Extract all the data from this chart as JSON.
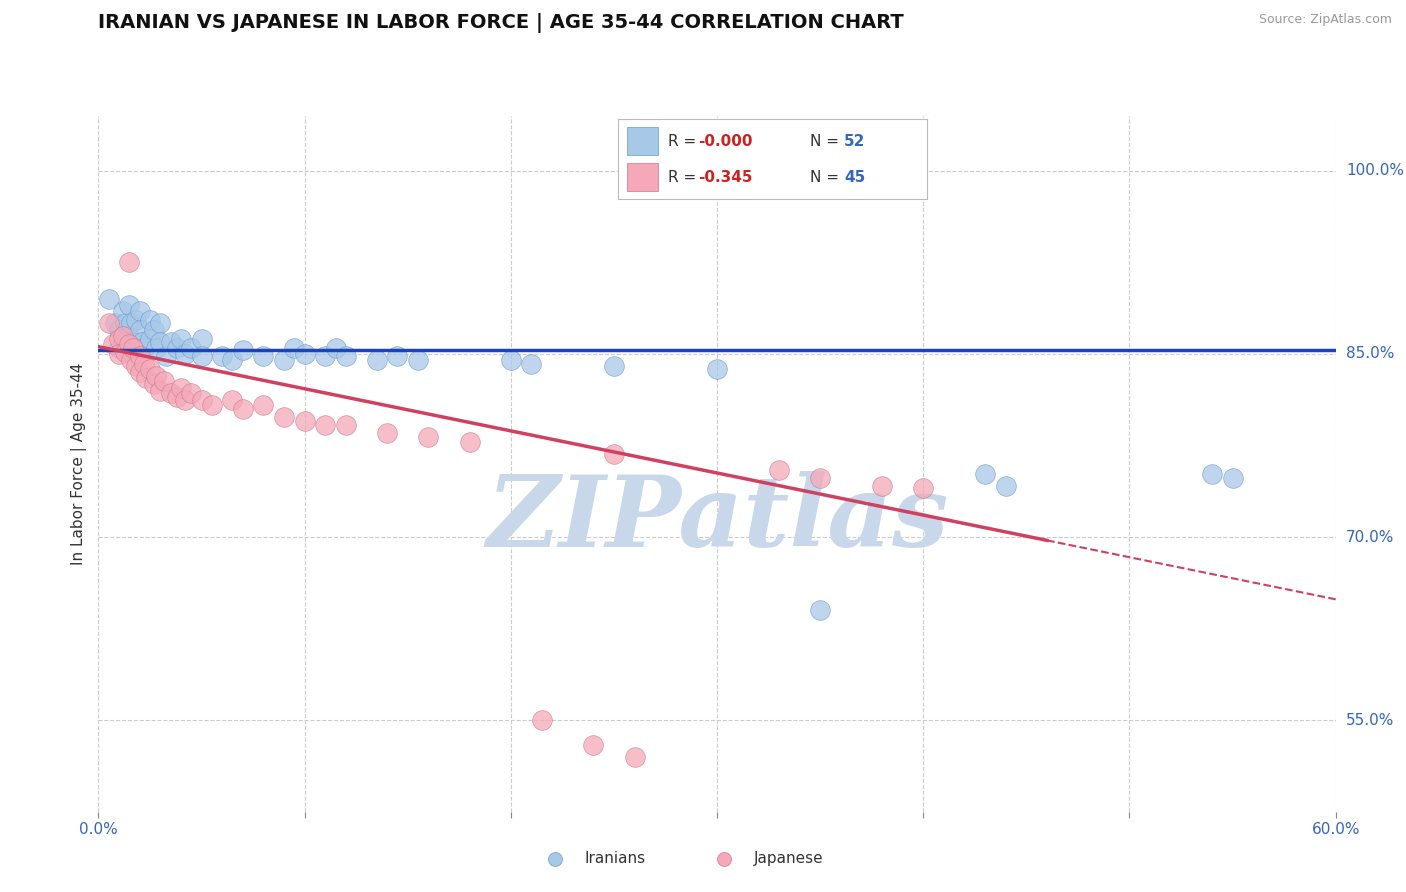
{
  "title": "IRANIAN VS JAPANESE IN LABOR FORCE | AGE 35-44 CORRELATION CHART",
  "source_text": "Source: ZipAtlas.com",
  "ylabel": "In Labor Force | Age 35-44",
  "xlim": [
    0.0,
    0.6
  ],
  "ylim": [
    0.475,
    1.045
  ],
  "xticks": [
    0.0,
    0.1,
    0.2,
    0.3,
    0.4,
    0.5,
    0.6
  ],
  "xticklabels": [
    "0.0%",
    "",
    "",
    "",
    "",
    "",
    "60.0%"
  ],
  "ytick_positions": [
    0.55,
    0.7,
    0.85,
    1.0
  ],
  "ytick_labels": [
    "55.0%",
    "70.0%",
    "85.0%",
    "100.0%"
  ],
  "blue_color": "#A8C8E8",
  "pink_color": "#F4A8B8",
  "blue_line_color": "#1A44BB",
  "pink_line_color": "#D04060",
  "grid_color": "#CCCCCC",
  "bg_color": "#FFFFFF",
  "watermark_text": "ZIPatlas",
  "watermark_color": "#C8D8EA",
  "legend_R_blue": "-0.000",
  "legend_N_blue": "52",
  "legend_R_pink": "-0.345",
  "legend_N_pink": "45",
  "legend_label_blue": "Iranians",
  "legend_label_pink": "Japanese",
  "blue_line_y_intercept": 0.853,
  "blue_line_slope": 0.0,
  "pink_line_y_intercept": 0.856,
  "pink_line_slope": -0.345,
  "pink_line_solid_end": 0.46,
  "blue_dots": [
    [
      0.005,
      0.895
    ],
    [
      0.008,
      0.875
    ],
    [
      0.01,
      0.87
    ],
    [
      0.01,
      0.855
    ],
    [
      0.012,
      0.885
    ],
    [
      0.012,
      0.862
    ],
    [
      0.013,
      0.875
    ],
    [
      0.015,
      0.89
    ],
    [
      0.015,
      0.865
    ],
    [
      0.016,
      0.875
    ],
    [
      0.017,
      0.86
    ],
    [
      0.018,
      0.878
    ],
    [
      0.02,
      0.885
    ],
    [
      0.02,
      0.87
    ],
    [
      0.021,
      0.86
    ],
    [
      0.022,
      0.855
    ],
    [
      0.025,
      0.878
    ],
    [
      0.025,
      0.862
    ],
    [
      0.027,
      0.87
    ],
    [
      0.028,
      0.855
    ],
    [
      0.03,
      0.875
    ],
    [
      0.03,
      0.86
    ],
    [
      0.033,
      0.848
    ],
    [
      0.035,
      0.86
    ],
    [
      0.038,
      0.855
    ],
    [
      0.04,
      0.862
    ],
    [
      0.042,
      0.85
    ],
    [
      0.045,
      0.855
    ],
    [
      0.05,
      0.862
    ],
    [
      0.05,
      0.848
    ],
    [
      0.06,
      0.848
    ],
    [
      0.065,
      0.845
    ],
    [
      0.07,
      0.853
    ],
    [
      0.08,
      0.848
    ],
    [
      0.09,
      0.845
    ],
    [
      0.095,
      0.855
    ],
    [
      0.1,
      0.85
    ],
    [
      0.11,
      0.848
    ],
    [
      0.115,
      0.855
    ],
    [
      0.12,
      0.848
    ],
    [
      0.135,
      0.845
    ],
    [
      0.145,
      0.848
    ],
    [
      0.155,
      0.845
    ],
    [
      0.2,
      0.845
    ],
    [
      0.21,
      0.842
    ],
    [
      0.25,
      0.84
    ],
    [
      0.3,
      0.838
    ],
    [
      0.35,
      0.64
    ],
    [
      0.43,
      0.752
    ],
    [
      0.44,
      0.742
    ],
    [
      0.54,
      0.752
    ],
    [
      0.55,
      0.748
    ]
  ],
  "pink_dots": [
    [
      0.005,
      0.875
    ],
    [
      0.007,
      0.858
    ],
    [
      0.01,
      0.862
    ],
    [
      0.01,
      0.85
    ],
    [
      0.012,
      0.865
    ],
    [
      0.013,
      0.852
    ],
    [
      0.015,
      0.858
    ],
    [
      0.016,
      0.845
    ],
    [
      0.017,
      0.855
    ],
    [
      0.018,
      0.84
    ],
    [
      0.02,
      0.848
    ],
    [
      0.02,
      0.835
    ],
    [
      0.022,
      0.842
    ],
    [
      0.023,
      0.83
    ],
    [
      0.025,
      0.838
    ],
    [
      0.027,
      0.825
    ],
    [
      0.028,
      0.832
    ],
    [
      0.03,
      0.82
    ],
    [
      0.032,
      0.828
    ],
    [
      0.035,
      0.818
    ],
    [
      0.038,
      0.815
    ],
    [
      0.04,
      0.822
    ],
    [
      0.042,
      0.812
    ],
    [
      0.045,
      0.818
    ],
    [
      0.05,
      0.812
    ],
    [
      0.055,
      0.808
    ],
    [
      0.065,
      0.812
    ],
    [
      0.07,
      0.805
    ],
    [
      0.08,
      0.808
    ],
    [
      0.09,
      0.798
    ],
    [
      0.1,
      0.795
    ],
    [
      0.11,
      0.792
    ],
    [
      0.12,
      0.792
    ],
    [
      0.14,
      0.785
    ],
    [
      0.16,
      0.782
    ],
    [
      0.18,
      0.778
    ],
    [
      0.25,
      0.768
    ],
    [
      0.33,
      0.755
    ],
    [
      0.35,
      0.748
    ],
    [
      0.38,
      0.742
    ],
    [
      0.4,
      0.74
    ],
    [
      0.015,
      0.925
    ],
    [
      0.215,
      0.55
    ],
    [
      0.24,
      0.53
    ],
    [
      0.26,
      0.52
    ]
  ]
}
